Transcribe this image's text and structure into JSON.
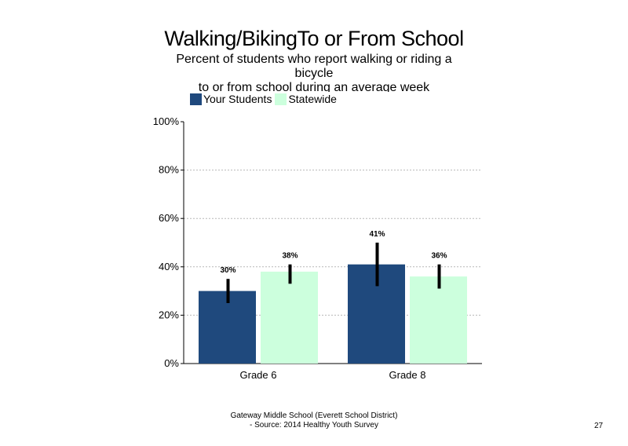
{
  "chart_data": {
    "type": "bar",
    "title": "Walking/BikingTo or From School",
    "subtitle_lines": [
      "Percent of students who report walking or riding a",
      "bicycle",
      "to or from school during an average week"
    ],
    "categories": [
      "Grade 6",
      "Grade 8"
    ],
    "series": [
      {
        "name": "Your Students",
        "values": [
          30,
          41
        ],
        "labels": [
          "30%",
          "41%"
        ],
        "error": [
          [
            25,
            35
          ],
          [
            32,
            50
          ]
        ],
        "color": "#1f497d"
      },
      {
        "name": "Statewide",
        "values": [
          38,
          36
        ],
        "labels": [
          "38%",
          "36%"
        ],
        "error": [
          [
            33,
            41
          ],
          [
            31,
            41
          ]
        ],
        "color": "#ccffdd"
      }
    ],
    "ylim": [
      0,
      100
    ],
    "yticks": [
      0,
      20,
      40,
      60,
      80,
      100
    ],
    "ytick_labels": [
      "0%",
      "20%",
      "40%",
      "60%",
      "80%",
      "100%"
    ],
    "grid": true,
    "legend_position": "top-left"
  },
  "footer": {
    "line1": "Gateway Middle School (Everett School District)",
    "line2": "- Source: 2014 Healthy Youth Survey"
  },
  "page_number": "27"
}
